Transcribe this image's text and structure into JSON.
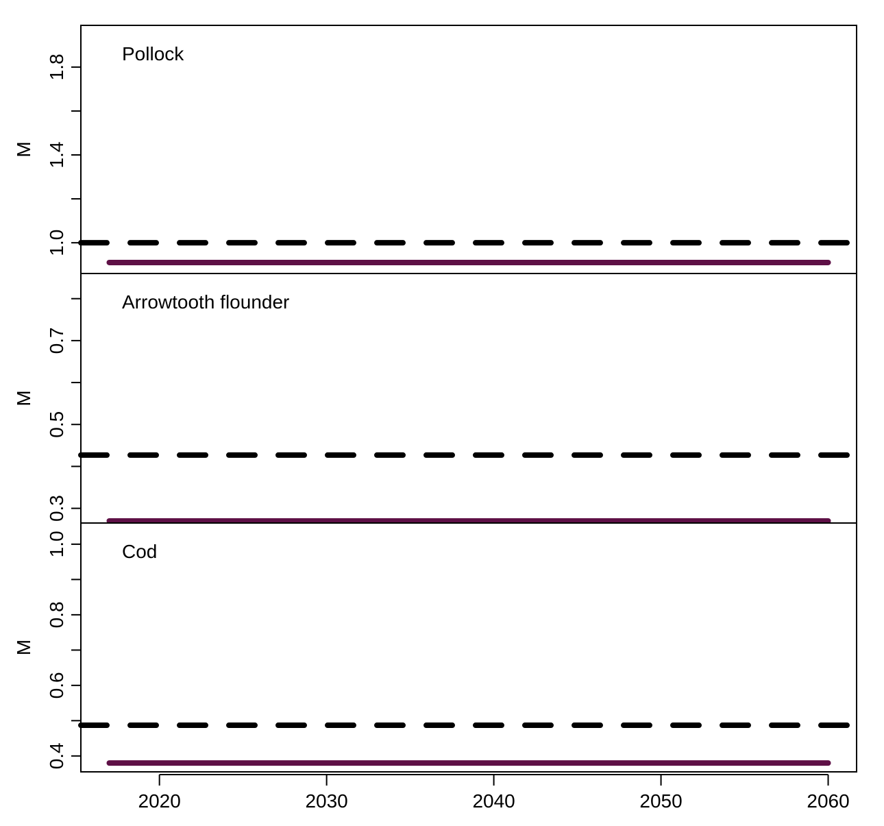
{
  "chart_data": {
    "type": "line",
    "x_axis": {
      "range": [
        2015.3,
        2061.7
      ],
      "ticks": [
        2020,
        2030,
        2040,
        2050,
        2060
      ],
      "tick_labels": [
        "2020",
        "2030",
        "2040",
        "2050",
        "2060"
      ]
    },
    "ylabel": "M",
    "colors": {
      "model": "#5e1046",
      "reference": "#000000",
      "frame": "#000000"
    },
    "panels": [
      {
        "title": "Pollock",
        "ylim": [
          0.86,
          1.99
        ],
        "y_ticks": [
          1.0,
          1.4,
          1.8
        ],
        "y_tick_labels": [
          "1.0",
          "1.4",
          "1.8"
        ],
        "y_minor_ticks": [
          1.0,
          1.2,
          1.4,
          1.6,
          1.8
        ],
        "series": [
          {
            "style": "dashed",
            "x": [
              2015.3,
              2061.7
            ],
            "y": [
              1.0,
              1.0
            ]
          },
          {
            "style": "solid",
            "x": [
              2017,
              2060
            ],
            "y": [
              0.91,
              0.91
            ]
          }
        ]
      },
      {
        "title": "Arrowtooth flounder",
        "ylim": [
          0.265,
          0.86
        ],
        "y_ticks": [
          0.3,
          0.5,
          0.7
        ],
        "y_tick_labels": [
          "0.3",
          "0.5",
          "0.7"
        ],
        "y_minor_ticks": [
          0.3,
          0.4,
          0.5,
          0.6,
          0.7,
          0.8
        ],
        "series": [
          {
            "style": "dashed",
            "x": [
              2015.3,
              2061.7
            ],
            "y": [
              0.427,
              0.427
            ]
          },
          {
            "style": "solid",
            "x": [
              2017,
              2060
            ],
            "y": [
              0.27,
              0.27
            ]
          }
        ]
      },
      {
        "title": "Cod",
        "ylim": [
          0.355,
          1.06
        ],
        "y_ticks": [
          0.4,
          0.6,
          0.8,
          1.0
        ],
        "y_tick_labels": [
          "0.4",
          "0.6",
          "0.8",
          "1.0"
        ],
        "y_minor_ticks": [
          0.4,
          0.5,
          0.6,
          0.7,
          0.8,
          0.9,
          1.0
        ],
        "series": [
          {
            "style": "dashed",
            "x": [
              2015.3,
              2061.7
            ],
            "y": [
              0.487,
              0.487
            ]
          },
          {
            "style": "solid",
            "x": [
              2017,
              2060
            ],
            "y": [
              0.38,
              0.38
            ]
          }
        ]
      }
    ]
  }
}
